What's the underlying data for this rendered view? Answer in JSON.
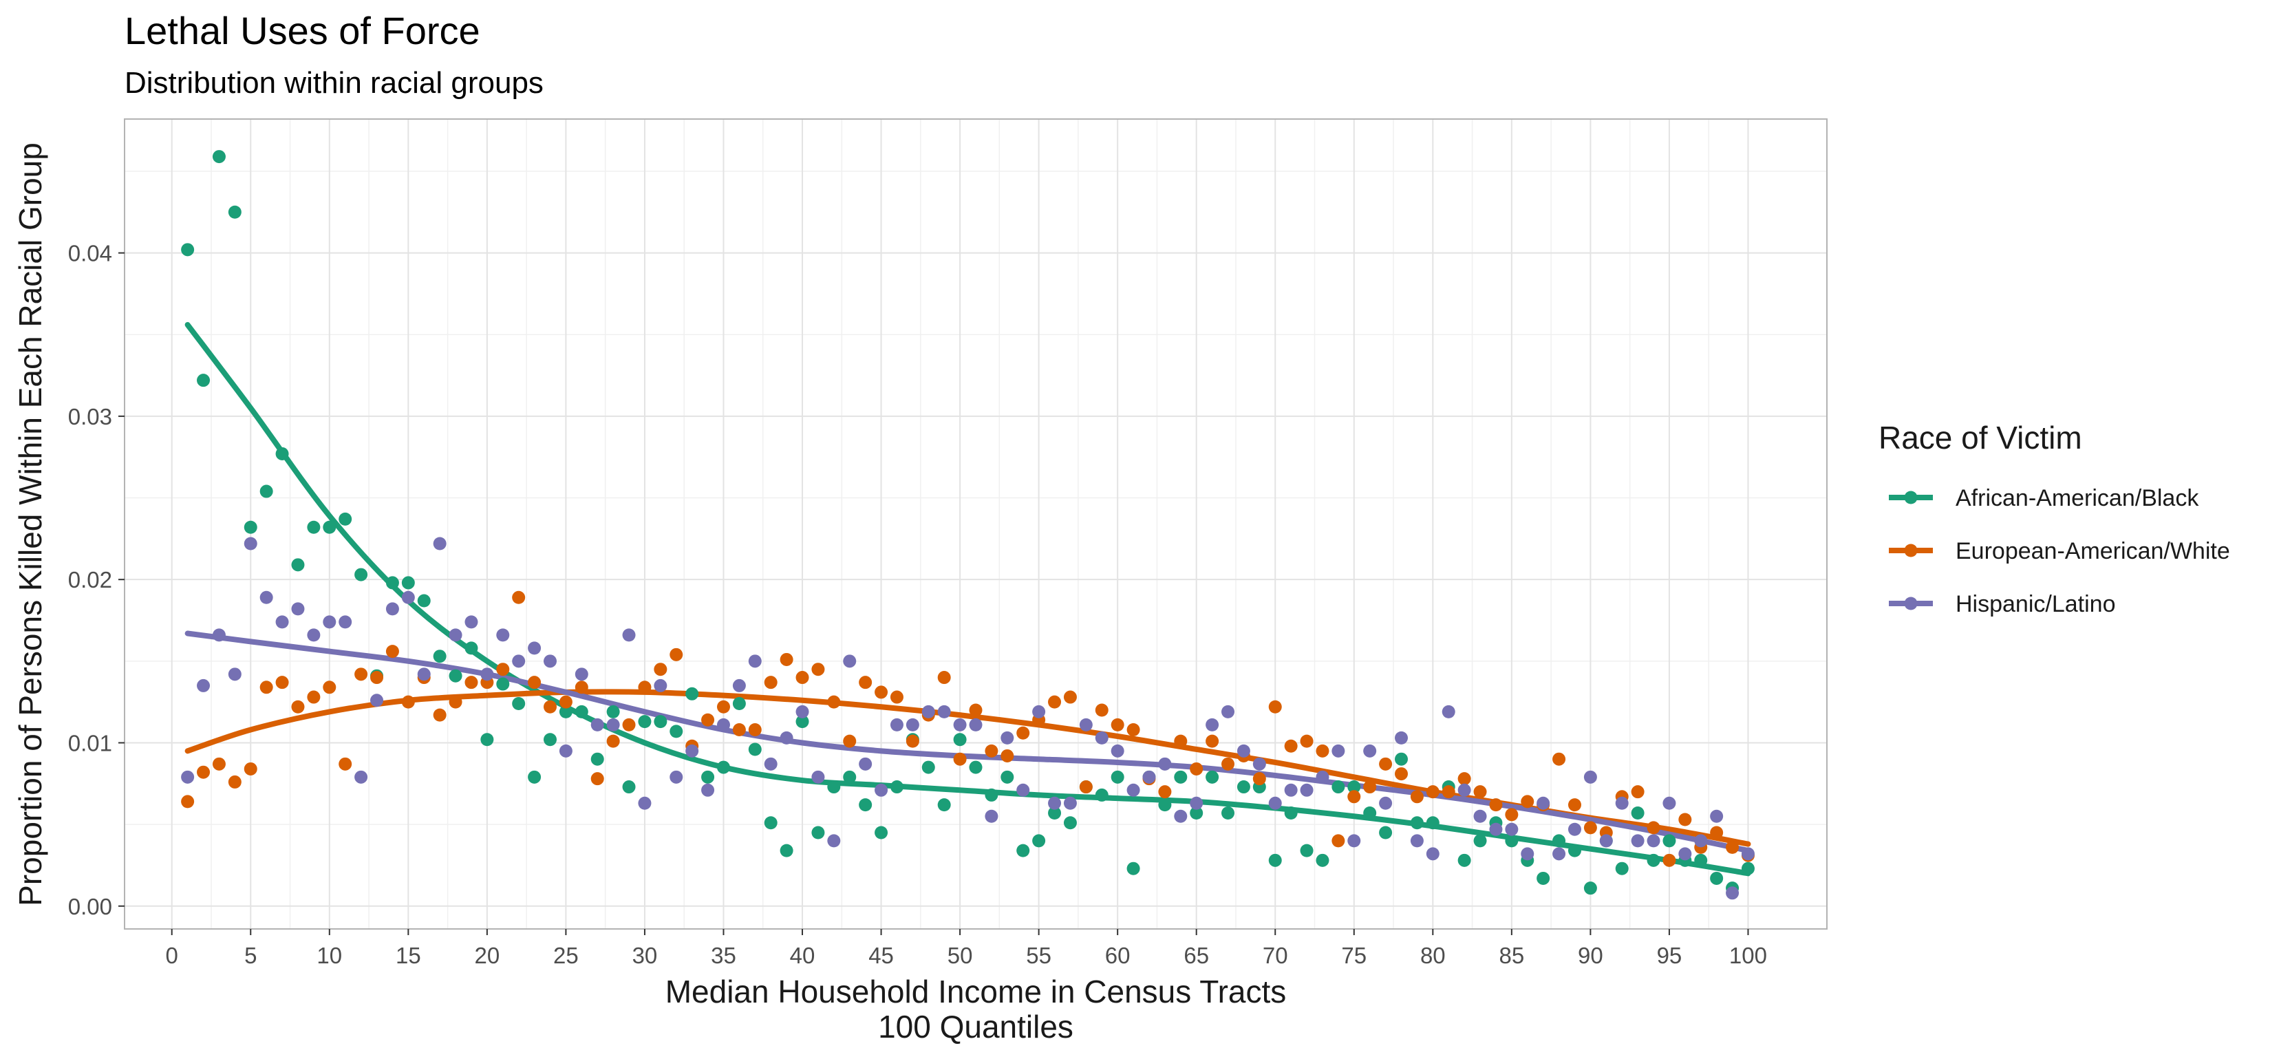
{
  "chart_data": {
    "type": "scatter",
    "title": "Lethal Uses of Force",
    "subtitle": "Distribution within racial groups",
    "xlabel": "Median Household Income in Census Tracts",
    "xlabel_line2": "100 Quantiles",
    "ylabel": "Proportion of Persons Killed Within Each Racial Group",
    "xlim": [
      -3,
      105
    ],
    "ylim": [
      -0.0014,
      0.0482
    ],
    "x_ticks": [
      0,
      5,
      10,
      15,
      20,
      25,
      30,
      35,
      40,
      45,
      50,
      55,
      60,
      65,
      70,
      75,
      80,
      85,
      90,
      95,
      100
    ],
    "x_tick_labels": [
      "0",
      "5",
      "10",
      "15",
      "20",
      "25",
      "30",
      "35",
      "40",
      "45",
      "50",
      "55",
      "60",
      "65",
      "70",
      "75",
      "80",
      "85",
      "90",
      "95",
      "100"
    ],
    "y_ticks": [
      0,
      0.01,
      0.02,
      0.03,
      0.04
    ],
    "y_tick_labels": [
      "0.00",
      "0.01",
      "0.02",
      "0.03",
      "0.04"
    ],
    "grid": true,
    "smoothing": "loess",
    "legend": {
      "title": "Race of Victim",
      "position": "right"
    },
    "series": [
      {
        "name": "African-American/Black",
        "color": "#1b9e77",
        "x": [
          1,
          2,
          3,
          4,
          5,
          6,
          7,
          8,
          9,
          10,
          11,
          12,
          13,
          14,
          15,
          16,
          17,
          18,
          19,
          20,
          21,
          22,
          23,
          24,
          25,
          26,
          27,
          28,
          29,
          30,
          31,
          32,
          33,
          34,
          35,
          36,
          37,
          38,
          39,
          40,
          41,
          42,
          43,
          44,
          45,
          46,
          47,
          48,
          49,
          50,
          51,
          52,
          53,
          54,
          55,
          56,
          57,
          58,
          59,
          60,
          61,
          62,
          63,
          64,
          65,
          66,
          67,
          68,
          69,
          70,
          71,
          72,
          73,
          74,
          75,
          76,
          77,
          78,
          79,
          80,
          81,
          82,
          83,
          84,
          85,
          86,
          87,
          88,
          89,
          90,
          91,
          92,
          93,
          94,
          95,
          96,
          97,
          98,
          99,
          100
        ],
        "y": [
          0.0402,
          0.0322,
          0.0459,
          0.0425,
          0.0232,
          0.0254,
          0.0277,
          0.0209,
          0.0232,
          0.0232,
          0.0237,
          0.0203,
          0.0141,
          0.0198,
          0.0198,
          0.0187,
          0.0153,
          0.0141,
          0.0158,
          0.0102,
          0.0136,
          0.0124,
          0.0079,
          0.0102,
          0.0119,
          0.0119,
          0.009,
          0.0119,
          0.0073,
          0.0113,
          0.0113,
          0.0107,
          0.013,
          0.0079,
          0.0085,
          0.0124,
          0.0096,
          0.0051,
          0.0034,
          0.0113,
          0.0045,
          0.0073,
          0.0079,
          0.0062,
          0.0045,
          0.0073,
          0.0102,
          0.0085,
          0.0062,
          0.0102,
          0.0085,
          0.0068,
          0.0079,
          0.0034,
          0.004,
          0.0057,
          0.0051,
          0.0073,
          0.0068,
          0.0079,
          0.0023,
          0.0079,
          0.0062,
          0.0079,
          0.0057,
          0.0079,
          0.0057,
          0.0073,
          0.0073,
          0.0028,
          0.0057,
          0.0034,
          0.0028,
          0.0073,
          0.0073,
          0.0057,
          0.0045,
          0.009,
          0.0051,
          0.0051,
          0.0073,
          0.0028,
          0.004,
          0.0051,
          0.004,
          0.0028,
          0.0017,
          0.004,
          0.0034,
          0.0011,
          0.004,
          0.0023,
          0.0057,
          0.0028,
          0.004,
          0.0028,
          0.0028,
          0.0017,
          0.0011,
          0.0023
        ],
        "trend": [
          [
            1,
            0.0356
          ],
          [
            5,
            0.0305
          ],
          [
            10,
            0.0239
          ],
          [
            15,
            0.0187
          ],
          [
            20,
            0.015
          ],
          [
            25,
            0.0122
          ],
          [
            30,
            0.01
          ],
          [
            35,
            0.0085
          ],
          [
            40,
            0.0077
          ],
          [
            45,
            0.0074
          ],
          [
            50,
            0.0071
          ],
          [
            55,
            0.0068
          ],
          [
            60,
            0.0066
          ],
          [
            65,
            0.0064
          ],
          [
            70,
            0.006
          ],
          [
            75,
            0.0055
          ],
          [
            80,
            0.0049
          ],
          [
            85,
            0.0042
          ],
          [
            90,
            0.0035
          ],
          [
            95,
            0.0028
          ],
          [
            100,
            0.002
          ]
        ]
      },
      {
        "name": "European-American/White",
        "color": "#d95f02",
        "x": [
          1,
          2,
          3,
          4,
          5,
          6,
          7,
          8,
          9,
          10,
          11,
          12,
          13,
          14,
          15,
          16,
          17,
          18,
          19,
          20,
          21,
          22,
          23,
          24,
          25,
          26,
          27,
          28,
          29,
          30,
          31,
          32,
          33,
          34,
          35,
          36,
          37,
          38,
          39,
          40,
          41,
          42,
          43,
          44,
          45,
          46,
          47,
          48,
          49,
          50,
          51,
          52,
          53,
          54,
          55,
          56,
          57,
          58,
          59,
          60,
          61,
          62,
          63,
          64,
          65,
          66,
          67,
          68,
          69,
          70,
          71,
          72,
          73,
          74,
          75,
          76,
          77,
          78,
          79,
          80,
          81,
          82,
          83,
          84,
          85,
          86,
          87,
          88,
          89,
          90,
          91,
          92,
          93,
          94,
          95,
          96,
          97,
          98,
          99,
          100
        ],
        "y": [
          0.0064,
          0.0082,
          0.0087,
          0.0076,
          0.0084,
          0.0134,
          0.0137,
          0.0122,
          0.0128,
          0.0134,
          0.0087,
          0.0142,
          0.014,
          0.0156,
          0.0125,
          0.014,
          0.0117,
          0.0125,
          0.0137,
          0.0137,
          0.0145,
          0.0189,
          0.0137,
          0.0122,
          0.0125,
          0.0134,
          0.0078,
          0.0101,
          0.0111,
          0.0134,
          0.0145,
          0.0154,
          0.0098,
          0.0114,
          0.0122,
          0.0108,
          0.0108,
          0.0137,
          0.0151,
          0.014,
          0.0145,
          0.0125,
          0.0101,
          0.0137,
          0.0131,
          0.0128,
          0.0101,
          0.0117,
          0.014,
          0.009,
          0.012,
          0.0095,
          0.0092,
          0.0106,
          0.0114,
          0.0125,
          0.0128,
          0.0073,
          0.012,
          0.0111,
          0.0108,
          0.0078,
          0.007,
          0.0101,
          0.0084,
          0.0101,
          0.0087,
          0.0092,
          0.0078,
          0.0122,
          0.0098,
          0.0101,
          0.0095,
          0.004,
          0.0067,
          0.0073,
          0.0087,
          0.0081,
          0.0067,
          0.007,
          0.007,
          0.0078,
          0.007,
          0.0062,
          0.0056,
          0.0064,
          0.0062,
          0.009,
          0.0062,
          0.0048,
          0.0045,
          0.0067,
          0.007,
          0.0048,
          0.0028,
          0.0053,
          0.0036,
          0.0045,
          0.0036,
          0.0031
        ],
        "trend": [
          [
            1,
            0.0095
          ],
          [
            5,
            0.0108
          ],
          [
            10,
            0.0119
          ],
          [
            15,
            0.0126
          ],
          [
            20,
            0.0129
          ],
          [
            25,
            0.0131
          ],
          [
            30,
            0.0131
          ],
          [
            35,
            0.0129
          ],
          [
            40,
            0.0126
          ],
          [
            45,
            0.0122
          ],
          [
            50,
            0.0117
          ],
          [
            55,
            0.0111
          ],
          [
            60,
            0.0104
          ],
          [
            65,
            0.0096
          ],
          [
            70,
            0.0088
          ],
          [
            75,
            0.0079
          ],
          [
            80,
            0.007
          ],
          [
            85,
            0.0062
          ],
          [
            90,
            0.0054
          ],
          [
            95,
            0.0047
          ],
          [
            100,
            0.0038
          ]
        ]
      },
      {
        "name": "Hispanic/Latino",
        "color": "#7570b3",
        "x": [
          1,
          2,
          3,
          4,
          5,
          6,
          7,
          8,
          9,
          10,
          11,
          12,
          13,
          14,
          15,
          16,
          17,
          18,
          19,
          20,
          21,
          22,
          23,
          24,
          25,
          26,
          27,
          28,
          29,
          30,
          31,
          32,
          33,
          34,
          35,
          36,
          37,
          38,
          39,
          40,
          41,
          42,
          43,
          44,
          45,
          46,
          47,
          48,
          49,
          50,
          51,
          52,
          53,
          54,
          55,
          56,
          57,
          58,
          59,
          60,
          61,
          62,
          63,
          64,
          65,
          66,
          67,
          68,
          69,
          70,
          71,
          72,
          73,
          74,
          75,
          76,
          77,
          78,
          79,
          80,
          81,
          82,
          83,
          84,
          85,
          86,
          87,
          88,
          89,
          90,
          91,
          92,
          93,
          94,
          95,
          96,
          97,
          98,
          99,
          100
        ],
        "y": [
          0.0079,
          0.0135,
          0.0166,
          0.0142,
          0.0222,
          0.0189,
          0.0174,
          0.0182,
          0.0166,
          0.0174,
          0.0174,
          0.0079,
          0.0126,
          0.0182,
          0.0189,
          0.0142,
          0.0222,
          0.0166,
          0.0174,
          0.0142,
          0.0166,
          0.015,
          0.0158,
          0.015,
          0.0095,
          0.0142,
          0.0111,
          0.0111,
          0.0166,
          0.0063,
          0.0135,
          0.0079,
          0.0095,
          0.0071,
          0.0111,
          0.0135,
          0.015,
          0.0087,
          0.0103,
          0.0119,
          0.0079,
          0.004,
          0.015,
          0.0087,
          0.0071,
          0.0111,
          0.0111,
          0.0119,
          0.0119,
          0.0111,
          0.0111,
          0.0055,
          0.0103,
          0.0071,
          0.0119,
          0.0063,
          0.0063,
          0.0111,
          0.0103,
          0.0095,
          0.0071,
          0.0079,
          0.0087,
          0.0055,
          0.0063,
          0.0111,
          0.0119,
          0.0095,
          0.0087,
          0.0063,
          0.0071,
          0.0071,
          0.0079,
          0.0095,
          0.004,
          0.0095,
          0.0063,
          0.0103,
          0.004,
          0.0032,
          0.0119,
          0.0071,
          0.0055,
          0.0047,
          0.0047,
          0.0032,
          0.0063,
          0.0032,
          0.0047,
          0.0079,
          0.004,
          0.0063,
          0.004,
          0.004,
          0.0063,
          0.0032,
          0.004,
          0.0055,
          0.0008,
          0.0032
        ],
        "trend": [
          [
            1,
            0.0167
          ],
          [
            5,
            0.0162
          ],
          [
            10,
            0.0156
          ],
          [
            15,
            0.015
          ],
          [
            20,
            0.0142
          ],
          [
            25,
            0.0131
          ],
          [
            30,
            0.0119
          ],
          [
            35,
            0.0108
          ],
          [
            40,
            0.01
          ],
          [
            45,
            0.0095
          ],
          [
            50,
            0.0092
          ],
          [
            55,
            0.009
          ],
          [
            60,
            0.0088
          ],
          [
            65,
            0.0085
          ],
          [
            70,
            0.008
          ],
          [
            75,
            0.0074
          ],
          [
            80,
            0.0068
          ],
          [
            85,
            0.0061
          ],
          [
            90,
            0.0053
          ],
          [
            95,
            0.0044
          ],
          [
            100,
            0.0034
          ]
        ]
      }
    ]
  }
}
